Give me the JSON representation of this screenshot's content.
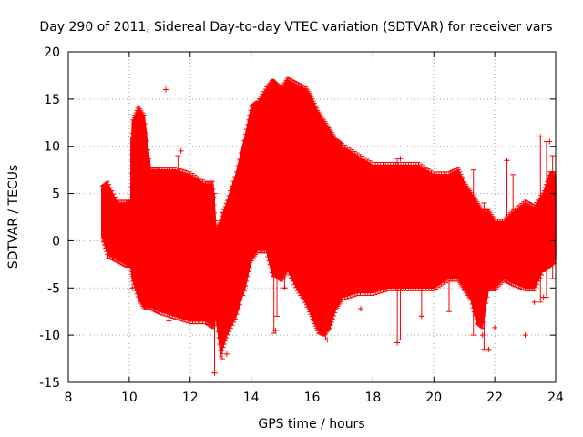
{
  "chart_data": {
    "type": "scatter",
    "title": "Day 290 of 2011, Sidereal Day-to-day VTEC variation (SDTVAR) for receiver vars",
    "xlabel": "GPS time / hours",
    "ylabel": "SDTVAR / TECUs",
    "xlim": [
      8,
      24
    ],
    "ylim": [
      -15,
      20
    ],
    "xticks": [
      8,
      10,
      12,
      14,
      16,
      18,
      20,
      22,
      24
    ],
    "yticks": [
      -15,
      -10,
      -5,
      0,
      5,
      10,
      15,
      20
    ],
    "xtick_labels": [
      "8",
      "10",
      "12",
      "14",
      "16",
      "18",
      "20",
      "22",
      "24"
    ],
    "ytick_labels": [
      "-15",
      "-10",
      "-5",
      "0",
      "5",
      "10",
      "15",
      "20"
    ],
    "grid": true,
    "color": "#ff0000",
    "series": [
      {
        "name": "SDTVAR",
        "marker": "plus-with-errorbars",
        "envelope": {
          "x": [
            9.1,
            9.3,
            9.6,
            9.9,
            10.05,
            10.1,
            10.3,
            10.5,
            10.7,
            11.0,
            11.5,
            12.0,
            12.5,
            12.75,
            12.85,
            13.0,
            13.2,
            13.5,
            13.8,
            14.0,
            14.2,
            14.5,
            14.7,
            14.8,
            15.0,
            15.2,
            15.5,
            15.8,
            16.0,
            16.2,
            16.4,
            16.6,
            16.8,
            17.0,
            17.5,
            18.0,
            18.5,
            19.0,
            19.5,
            20.0,
            20.5,
            20.8,
            21.0,
            21.2,
            21.4,
            21.6,
            21.8,
            22.0,
            22.3,
            22.6,
            23.0,
            23.3,
            23.6,
            23.8,
            24.0
          ],
          "upper": [
            5.5,
            6.0,
            4.0,
            4.0,
            4.0,
            12.5,
            14.0,
            13.0,
            7.5,
            7.5,
            7.5,
            7.0,
            6.0,
            6.0,
            1.0,
            2.0,
            4.0,
            7.0,
            11.0,
            14.0,
            14.5,
            16.0,
            16.8,
            16.5,
            16.0,
            17.0,
            16.5,
            16.0,
            15.0,
            13.5,
            12.5,
            11.5,
            10.5,
            10.0,
            9.0,
            8.0,
            8.0,
            8.0,
            8.0,
            7.0,
            7.0,
            7.5,
            6.0,
            5.0,
            4.0,
            3.0,
            3.0,
            2.0,
            2.0,
            3.0,
            4.0,
            3.5,
            5.0,
            7.0,
            7.0
          ],
          "lower": [
            0.5,
            -1.5,
            -2.0,
            -2.5,
            -2.5,
            -4.0,
            -6.0,
            -7.0,
            -7.0,
            -7.5,
            -8.0,
            -8.5,
            -8.5,
            -9.0,
            -8.0,
            -12.0,
            -10.0,
            -8.0,
            -5.0,
            -2.0,
            -1.0,
            -1.0,
            -3.5,
            -3.5,
            -4.0,
            -3.0,
            -5.0,
            -6.5,
            -8.0,
            -9.5,
            -9.8,
            -9.0,
            -7.0,
            -6.0,
            -5.5,
            -5.5,
            -5.0,
            -5.0,
            -5.0,
            -5.0,
            -4.0,
            -4.0,
            -5.0,
            -6.0,
            -8.5,
            -9.0,
            -5.0,
            -5.0,
            -4.0,
            -4.5,
            -5.0,
            -5.0,
            -3.0,
            -2.5,
            -2.0
          ]
        },
        "outliers": [
          {
            "x": 11.2,
            "y": 16.0
          },
          {
            "x": 12.8,
            "y": -14.0
          },
          {
            "x": 13.2,
            "y": -12.0
          },
          {
            "x": 16.5,
            "y": -10.5
          },
          {
            "x": 17.6,
            "y": -7.2
          },
          {
            "x": 18.9,
            "y": 8.7
          },
          {
            "x": 18.8,
            "y": -10.8
          },
          {
            "x": 19.6,
            "y": -8.0
          },
          {
            "x": 21.8,
            "y": -11.5
          },
          {
            "x": 22.0,
            "y": -9.2
          },
          {
            "x": 22.4,
            "y": 8.5
          },
          {
            "x": 23.0,
            "y": -10.0
          },
          {
            "x": 23.5,
            "y": 11.0
          },
          {
            "x": 23.8,
            "y": 10.5
          },
          {
            "x": 14.8,
            "y": -9.5
          },
          {
            "x": 15.1,
            "y": -5.0
          },
          {
            "x": 11.7,
            "y": 9.5
          },
          {
            "x": 10.1,
            "y": -5.0
          },
          {
            "x": 10.3,
            "y": -5.0
          },
          {
            "x": 12.3,
            "y": -5.0
          },
          {
            "x": 21.6,
            "y": -10.0
          },
          {
            "x": 23.3,
            "y": -6.5
          },
          {
            "x": 23.6,
            "y": -6.0
          }
        ],
        "spikes": [
          {
            "x": 10.05,
            "low": -3.0,
            "high": 11.0
          },
          {
            "x": 11.3,
            "low": -8.5,
            "high": 7.0
          },
          {
            "x": 11.6,
            "low": -8.0,
            "high": 9.0
          },
          {
            "x": 12.8,
            "low": -14.0,
            "high": 5.0
          },
          {
            "x": 13.05,
            "low": -12.5,
            "high": 3.0
          },
          {
            "x": 14.75,
            "low": -9.8,
            "high": 3.0
          },
          {
            "x": 14.85,
            "low": -8.0,
            "high": 5.0
          },
          {
            "x": 15.1,
            "low": -5.0,
            "high": 7.0
          },
          {
            "x": 16.45,
            "low": -10.5,
            "high": 11.0
          },
          {
            "x": 18.8,
            "low": -10.8,
            "high": 8.7
          },
          {
            "x": 18.9,
            "low": -10.5,
            "high": 5.0
          },
          {
            "x": 19.6,
            "low": -8.0,
            "high": 5.0
          },
          {
            "x": 20.5,
            "low": -7.5,
            "high": 6.0
          },
          {
            "x": 21.3,
            "low": -10.0,
            "high": 7.5
          },
          {
            "x": 21.65,
            "low": -11.5,
            "high": 4.0
          },
          {
            "x": 22.4,
            "low": -3.0,
            "high": 8.5
          },
          {
            "x": 22.6,
            "low": -1.5,
            "high": 7.0
          },
          {
            "x": 23.5,
            "low": -6.5,
            "high": 11.0
          },
          {
            "x": 23.7,
            "low": -6.0,
            "high": 10.5
          },
          {
            "x": 23.9,
            "low": -4.0,
            "high": 9.0
          }
        ]
      }
    ]
  }
}
